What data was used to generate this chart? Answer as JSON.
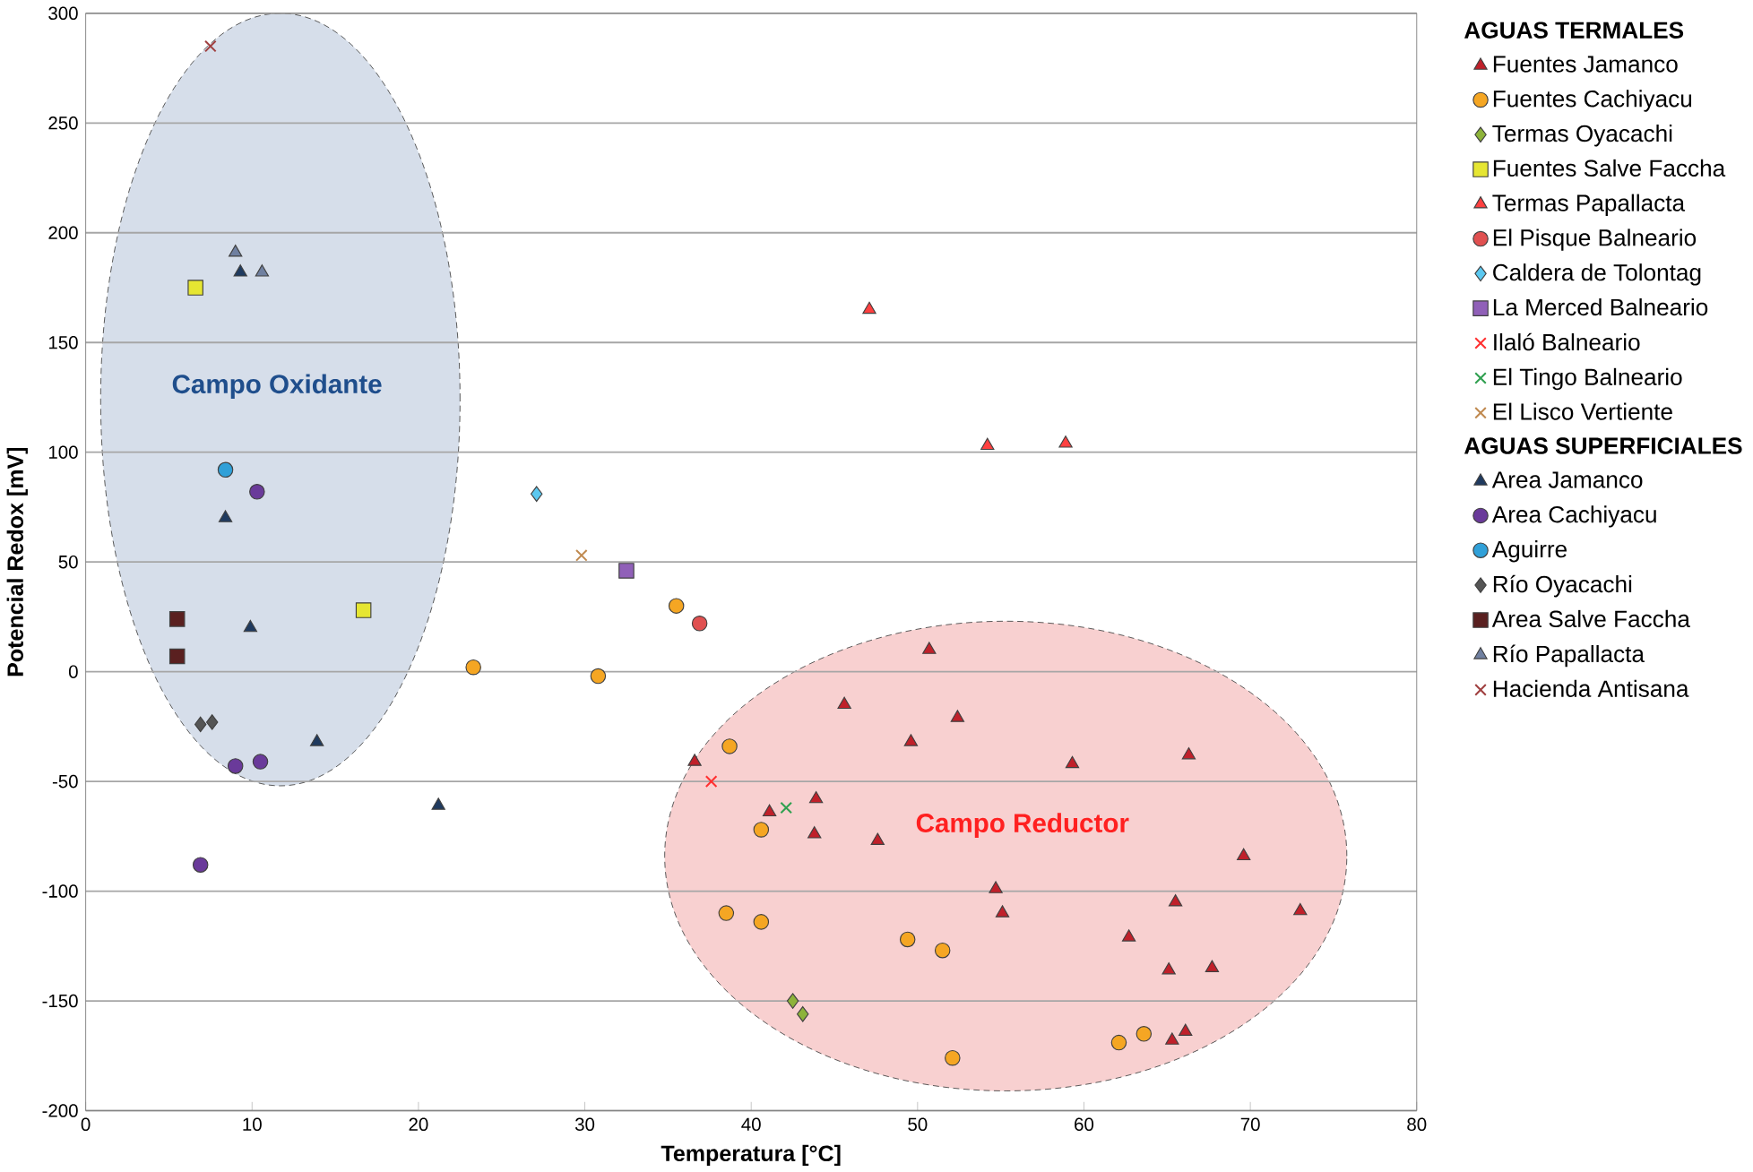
{
  "chart_data": {
    "type": "scatter",
    "xlabel": "Temperatura [°C]",
    "ylabel": "Potencial Redox [mV]",
    "legend_title": "AGUAS TERMALES",
    "xlim": [
      0,
      80
    ],
    "xticks": [
      0,
      10,
      20,
      30,
      40,
      50,
      60,
      70,
      80
    ],
    "ylim": [
      -200,
      300
    ],
    "yticks": [
      -200,
      -150,
      -100,
      -50,
      0,
      50,
      100,
      150,
      200,
      250,
      300
    ],
    "grid": "y",
    "legend": "right",
    "annotations": [
      "Campo Oxidante",
      "Campo Reductor",
      "AGUAS SUPERFICIALES"
    ],
    "series": [
      {
        "name": "Fuentes Jamanco",
        "color": "#c0202a",
        "marker": "triangle",
        "x": [
          50.7,
          45.6,
          52.4,
          49.6,
          59.3,
          66.3,
          36.6,
          43.9,
          41.1,
          43.8,
          47.6,
          69.6,
          54.7,
          55.1,
          65.5,
          73.0,
          62.7,
          65.1,
          67.7,
          66.1,
          65.3
        ],
        "values": [
          10,
          -15,
          -21,
          -32,
          -42,
          -38,
          -41,
          -58,
          -64,
          -74,
          -77,
          -84,
          -99,
          -110,
          -105,
          -109,
          -121,
          -136,
          -135,
          -164,
          -168
        ]
      },
      {
        "name": "Fuentes Cachiyacu",
        "color": "#f5a623",
        "marker": "circle",
        "x": [
          23.3,
          30.8,
          35.5,
          38.7,
          38.5,
          40.6,
          40.6,
          49.4,
          51.5,
          52.1,
          62.1,
          63.6
        ],
        "values": [
          2,
          -2,
          30,
          -34,
          -110,
          -72,
          -114,
          -122,
          -127,
          -176,
          -169,
          -165
        ]
      },
      {
        "name": "Termas Oyacachi",
        "color": "#8db33a",
        "marker": "diamond",
        "x": [
          42.5,
          43.1
        ],
        "values": [
          -150,
          -156
        ]
      },
      {
        "name": "Fuentes Salve Faccha",
        "color": "#e6e632",
        "marker": "square",
        "x": [
          6.6,
          16.7
        ],
        "values": [
          175,
          28
        ]
      },
      {
        "name": "Termas Papallacta",
        "color": "#ff4040",
        "marker": "triangle",
        "x": [
          47.1,
          54.2,
          58.9
        ],
        "values": [
          165,
          103,
          104
        ]
      },
      {
        "name": "El Pisque Balneario",
        "color": "#e05050",
        "marker": "circle",
        "x": [
          36.9
        ],
        "values": [
          22
        ]
      },
      {
        "name": "Caldera de Tolontag",
        "color": "#5bc8f0",
        "marker": "diamond",
        "x": [
          27.1
        ],
        "values": [
          81
        ]
      },
      {
        "name": "La Merced Balneario",
        "color": "#9060b8",
        "marker": "square",
        "x": [
          32.5
        ],
        "values": [
          46
        ]
      },
      {
        "name": "Ilaló Balneario",
        "color": "#ff3030",
        "marker": "cross",
        "x": [
          37.6
        ],
        "values": [
          -50
        ]
      },
      {
        "name": "El Tingo Balneario",
        "color": "#30a050",
        "marker": "cross",
        "x": [
          42.1
        ],
        "values": [
          -62
        ]
      },
      {
        "name": "El Lisco Vertiente",
        "color": "#c08a50",
        "marker": "cross",
        "x": [
          29.8
        ],
        "values": [
          53
        ]
      },
      {
        "name": "Area Jamanco",
        "color": "#1f3a5f",
        "marker": "triangle",
        "x": [
          9.3,
          8.4,
          9.9,
          13.9,
          21.2
        ],
        "values": [
          182,
          70,
          20,
          -32,
          -61
        ]
      },
      {
        "name": "Area Cachiyacu",
        "color": "#6a3a9a",
        "marker": "circle",
        "x": [
          10.3,
          9.0,
          10.5,
          6.9
        ],
        "values": [
          82,
          -43,
          -41,
          -88
        ]
      },
      {
        "name": "Aguirre",
        "color": "#30a0d8",
        "marker": "circle",
        "x": [
          8.4
        ],
        "values": [
          92
        ]
      },
      {
        "name": "Río Oyacachi",
        "color": "#555555",
        "marker": "diamond",
        "x": [
          6.9,
          7.6
        ],
        "values": [
          -24,
          -23
        ]
      },
      {
        "name": "Area Salve Faccha",
        "color": "#5a2020",
        "marker": "square",
        "x": [
          5.5,
          5.5
        ],
        "values": [
          24,
          7
        ]
      },
      {
        "name": "Río Papallacta",
        "color": "#7080a0",
        "marker": "triangle",
        "x": [
          9.0,
          10.6
        ],
        "values": [
          191,
          182
        ]
      },
      {
        "name": "Hacienda Antisana",
        "color": "#a04040",
        "marker": "cross",
        "x": [
          7.5
        ],
        "values": [
          285
        ]
      }
    ]
  }
}
